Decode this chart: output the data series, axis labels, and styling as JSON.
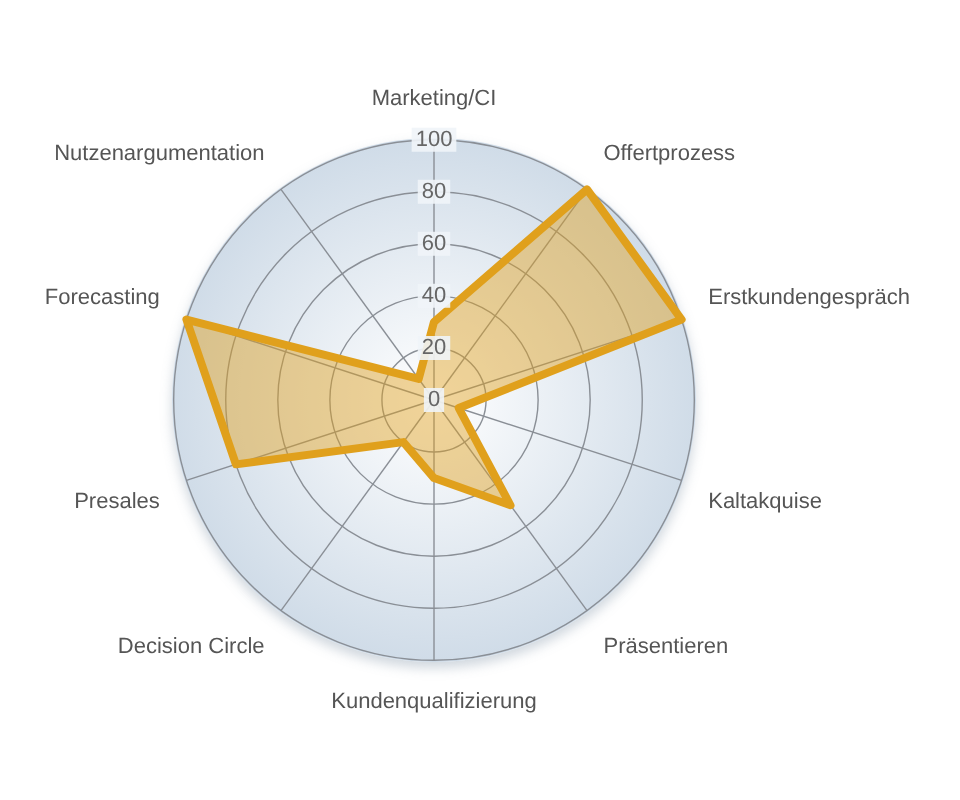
{
  "chart_data": {
    "type": "radar",
    "categories": [
      "Marketing/CI",
      "Offertprozess",
      "Erstkundengespräch",
      "Kaltakquise",
      "Präsentieren",
      "Kundenqualifizierung",
      "Decision Circle",
      "Presales",
      "Forecasting",
      "Nutzenargumentation"
    ],
    "series": [
      {
        "color": "#e0a01c",
        "values": [
          30,
          100,
          100,
          10,
          50,
          30,
          20,
          80,
          100,
          10
        ]
      }
    ],
    "ylim": [
      0,
      100
    ],
    "yticks": [
      0,
      20,
      40,
      60,
      80,
      100
    ],
    "grid": true,
    "marker": "none"
  }
}
